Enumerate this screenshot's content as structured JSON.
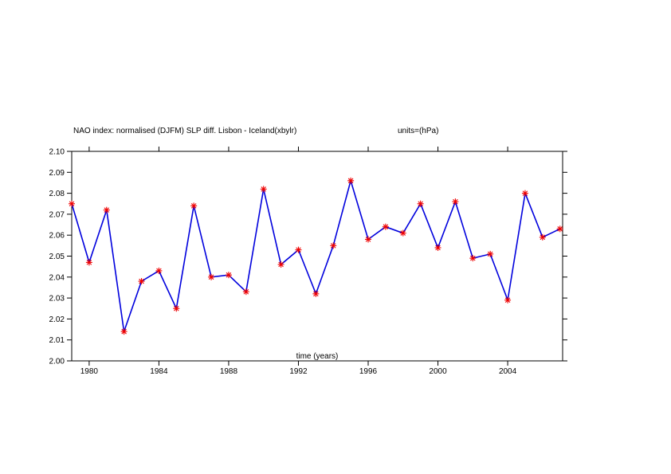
{
  "chart_data": {
    "type": "line",
    "title": "NAO index: normalised (DJFM) SLP diff. Lisbon - Iceland(xbylr)",
    "units_label": "units=(hPa)",
    "xlabel": "time (years)",
    "ylabel": "",
    "xlim": [
      1979,
      2007
    ],
    "ylim": [
      2.0,
      2.1
    ],
    "x_ticks": [
      1980,
      1984,
      1988,
      1992,
      1996,
      2000,
      2004
    ],
    "y_ticks": [
      2.0,
      2.01,
      2.02,
      2.03,
      2.04,
      2.05,
      2.06,
      2.07,
      2.08,
      2.09,
      2.1
    ],
    "y_tick_labels": [
      "2.00",
      "2.01",
      "2.02",
      "2.03",
      "2.04",
      "2.05",
      "2.06",
      "2.07",
      "2.08",
      "2.09",
      "2.10"
    ],
    "grid": false,
    "series": [
      {
        "line_color": "#0000dd",
        "marker_color": "#ee0000",
        "marker": "asterisk",
        "x": [
          1979,
          1980,
          1981,
          1982,
          1983,
          1984,
          1985,
          1986,
          1987,
          1988,
          1989,
          1990,
          1991,
          1992,
          1993,
          1994,
          1995,
          1996,
          1997,
          1998,
          1999,
          2000,
          2001,
          2002,
          2003,
          2004,
          2005,
          2006,
          2007
        ],
        "y": [
          2.075,
          2.047,
          2.072,
          2.014,
          2.038,
          2.043,
          2.025,
          2.074,
          2.04,
          2.041,
          2.033,
          2.082,
          2.046,
          2.053,
          2.032,
          2.055,
          2.086,
          2.058,
          2.064,
          2.061,
          2.075,
          2.054,
          2.076,
          2.049,
          2.051,
          2.029,
          2.08,
          2.059,
          2.063
        ]
      }
    ]
  }
}
